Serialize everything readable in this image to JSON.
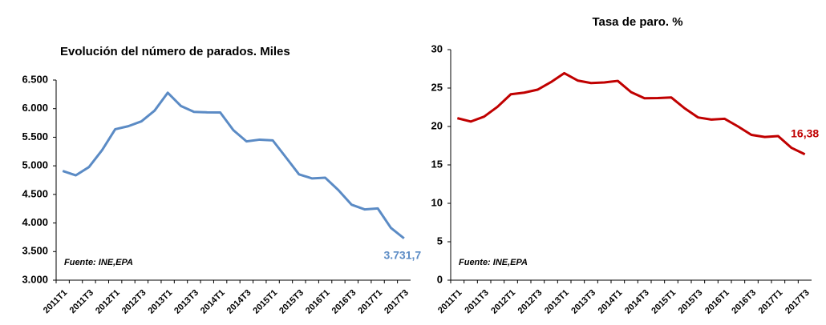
{
  "chart_data": [
    {
      "type": "line",
      "title": "Evolución del número de parados. Miles",
      "categories": [
        "2011T1",
        null,
        "2011T3",
        null,
        "2012T1",
        null,
        "2012T3",
        null,
        "2013T1",
        null,
        "2013T3",
        null,
        "2014T1",
        null,
        "2014T3",
        null,
        "2015T1",
        null,
        "2015T3",
        null,
        "2016T1",
        null,
        "2016T3",
        null,
        "2017T1",
        null,
        "2017T3"
      ],
      "series": [
        {
          "name": "Parados",
          "color": "#5b8bc5",
          "values": [
            4910.2,
            4833.7,
            4978.3,
            5273.6,
            5639.5,
            5693.1,
            5778.1,
            5965.4,
            6278.2,
            6047.3,
            5943.4,
            5935.6,
            5933.3,
            5622.9,
            5427.7,
            5457.7,
            5444.6,
            5149.0,
            4850.8,
            4779.5,
            4791.4,
            4574.7,
            4320.8,
            4237.8,
            4255.0,
            3914.3,
            3731.7
          ],
          "value_labels": [
            null,
            null,
            null,
            null,
            null,
            null,
            null,
            null,
            null,
            null,
            null,
            null,
            null,
            null,
            null,
            null,
            null,
            null,
            null,
            null,
            null,
            null,
            null,
            null,
            null,
            null,
            "3.731,7"
          ]
        }
      ],
      "ylim": [
        3000,
        6500
      ],
      "yticks": [
        {
          "value": 3000,
          "label": "3.000"
        },
        {
          "value": 3500,
          "label": "3.500"
        },
        {
          "value": 4000,
          "label": "4.000"
        },
        {
          "value": 4500,
          "label": "4.500"
        },
        {
          "value": 5000,
          "label": "5.000"
        },
        {
          "value": 5500,
          "label": "5.500"
        },
        {
          "value": 6000,
          "label": "6.000"
        },
        {
          "value": 6500,
          "label": "6.500"
        }
      ],
      "annotation": "Fuente: INE,EPA"
    },
    {
      "type": "line",
      "title": "Tasa de paro. %",
      "categories": [
        "2011T1",
        null,
        "2011T3",
        null,
        "2012T1",
        null,
        "2012T3",
        null,
        "2013T1",
        null,
        "2013T3",
        null,
        "2014T1",
        null,
        "2014T3",
        null,
        "2015T1",
        null,
        "2015T3",
        null,
        "2016T1",
        null,
        "2016T3",
        null,
        "2017T1",
        null,
        "2017T3"
      ],
      "series": [
        {
          "name": "Tasa de paro",
          "color": "#c00000",
          "values": [
            21.08,
            20.64,
            21.28,
            22.56,
            24.19,
            24.4,
            24.79,
            25.77,
            26.94,
            25.98,
            25.65,
            25.73,
            25.93,
            24.47,
            23.67,
            23.7,
            23.78,
            22.37,
            21.18,
            20.9,
            21.0,
            20.0,
            18.91,
            18.63,
            18.75,
            17.22,
            16.38
          ],
          "value_labels": [
            null,
            null,
            null,
            null,
            null,
            null,
            null,
            null,
            null,
            null,
            null,
            null,
            null,
            null,
            null,
            null,
            null,
            null,
            null,
            null,
            null,
            null,
            null,
            null,
            null,
            null,
            "16,38"
          ]
        }
      ],
      "ylim": [
        0,
        30
      ],
      "yticks": [
        0,
        5,
        10,
        15,
        20,
        25,
        30
      ],
      "annotation": "Fuente: INE,EPA"
    }
  ]
}
